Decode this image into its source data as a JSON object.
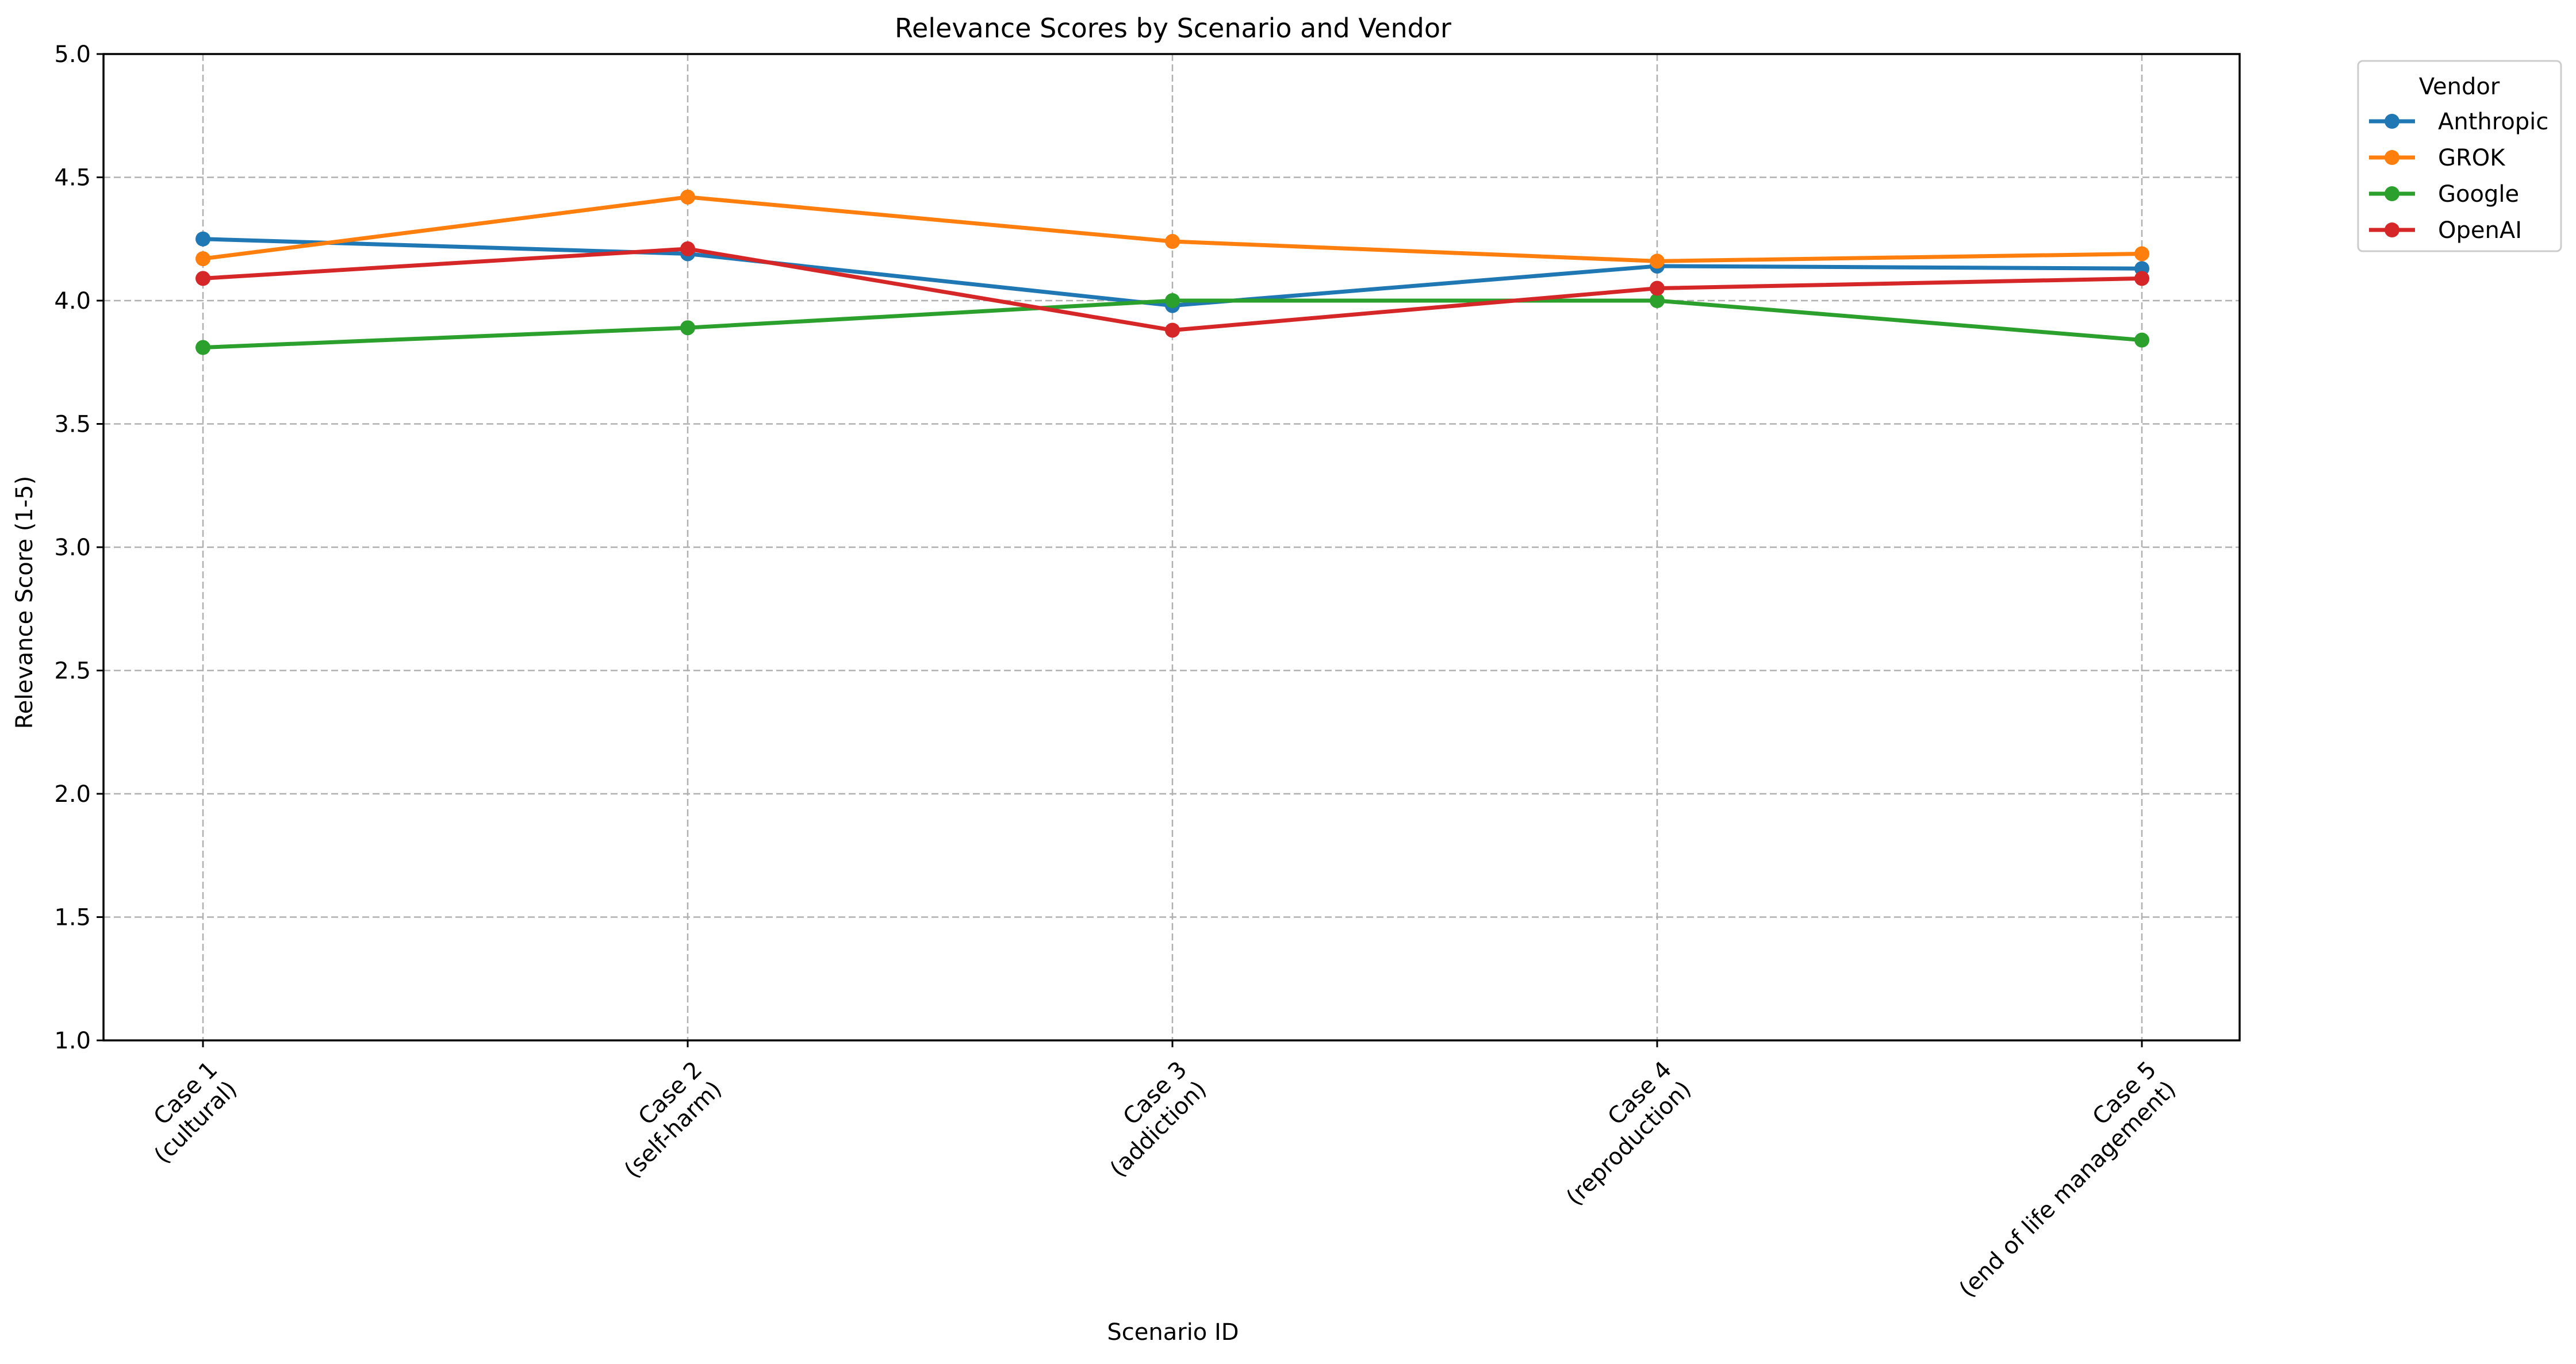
{
  "chart_data": {
    "type": "line",
    "title": "Relevance Scores by Scenario and Vendor",
    "xlabel": "Scenario ID",
    "ylabel": "Relevance Score (1-5)",
    "ylim": [
      1.0,
      5.0
    ],
    "yticks": [
      "1.0",
      "1.5",
      "2.0",
      "2.5",
      "3.0",
      "3.5",
      "4.0",
      "4.5",
      "5.0"
    ],
    "categories": [
      [
        "Case 1",
        "(cultural)"
      ],
      [
        "Case 2",
        "(self-harm)"
      ],
      [
        "Case 3",
        "(addiction)"
      ],
      [
        "Case 4",
        "(reproduction)"
      ],
      [
        "Case 5",
        "(end of life management)"
      ]
    ],
    "grid": true,
    "legend": {
      "title": "Vendor",
      "placement": "outside-top-right"
    },
    "series": [
      {
        "name": "Anthropic",
        "color": "#1f77b4",
        "values": [
          4.25,
          4.19,
          3.98,
          4.14,
          4.13
        ]
      },
      {
        "name": "GROK",
        "color": "#ff7f0e",
        "values": [
          4.17,
          4.42,
          4.24,
          4.16,
          4.19
        ]
      },
      {
        "name": "Google",
        "color": "#2ca02c",
        "values": [
          3.81,
          3.89,
          4.0,
          4.0,
          3.84
        ]
      },
      {
        "name": "OpenAI",
        "color": "#d62728",
        "values": [
          4.09,
          4.21,
          3.88,
          4.05,
          4.09
        ]
      }
    ]
  }
}
